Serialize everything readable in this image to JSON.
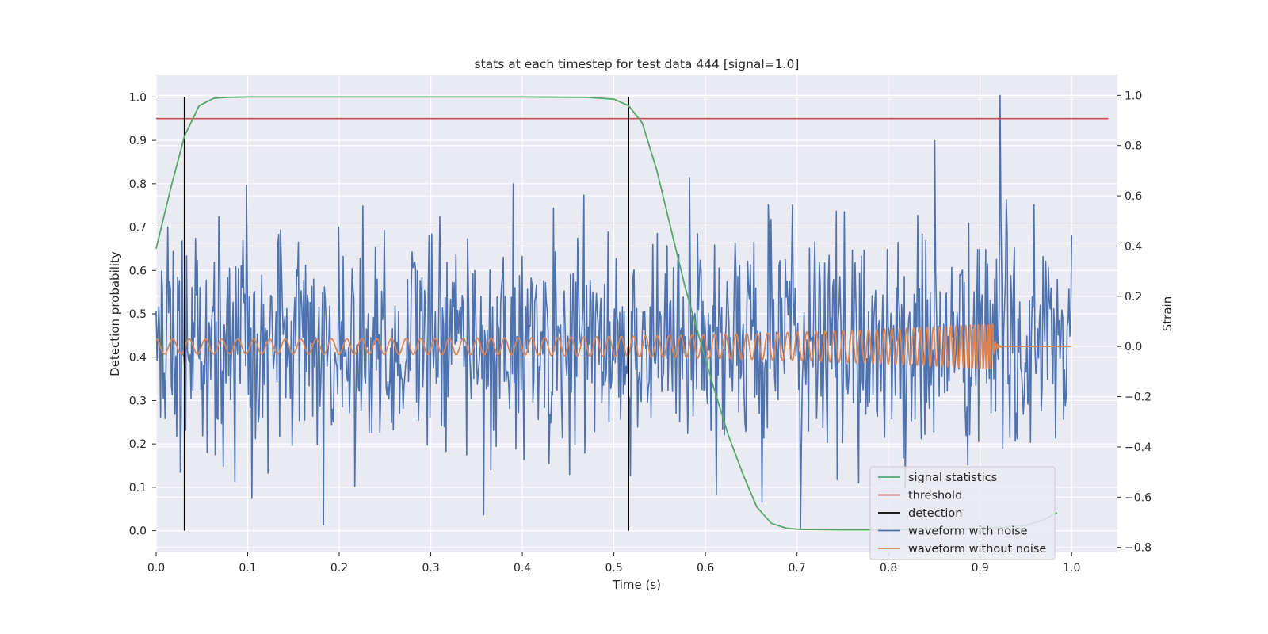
{
  "chart_data": {
    "type": "line",
    "title": "stats at each timestep for test data 444 [signal=1.0]",
    "xlabel": "Time (s)",
    "ylabel_left": "Detection probability",
    "ylabel_right": "Strain",
    "xlim": [
      0.0,
      1.05
    ],
    "ylim_left": [
      -0.05,
      1.05
    ],
    "ylim_right": [
      -0.82,
      1.08
    ],
    "x_ticks": [
      0.0,
      0.1,
      0.2,
      0.3,
      0.4,
      0.5,
      0.6,
      0.7,
      0.8,
      0.9,
      1.0
    ],
    "x_tick_labels": [
      "0.0",
      "0.1",
      "0.2",
      "0.3",
      "0.4",
      "0.5",
      "0.6",
      "0.7",
      "0.8",
      "0.9",
      "1.0"
    ],
    "y_left_ticks": [
      0.0,
      0.1,
      0.2,
      0.3,
      0.4,
      0.5,
      0.6,
      0.7,
      0.8,
      0.9,
      1.0
    ],
    "y_left_tick_labels": [
      "0.0",
      "0.1",
      "0.2",
      "0.3",
      "0.4",
      "0.5",
      "0.6",
      "0.7",
      "0.8",
      "0.9",
      "1.0"
    ],
    "y_right_ticks": [
      -0.8,
      -0.6,
      -0.4,
      -0.2,
      0.0,
      0.2,
      0.4,
      0.6,
      0.8,
      1.0
    ],
    "y_right_tick_labels": [
      "−0.8",
      "−0.6",
      "−0.4",
      "−0.2",
      "0.0",
      "0.2",
      "0.4",
      "0.6",
      "0.8",
      "1.0"
    ],
    "grid": true,
    "legend_position": "lower-right",
    "legend": [
      "signal statistics",
      "threshold",
      "detection",
      "waveform with noise",
      "waveform without noise"
    ],
    "colors": {
      "signal_statistics": "#55a868",
      "threshold": "#c44e52",
      "detection": "#000000",
      "waveform_with_noise": "#4c72b0",
      "waveform_without_noise": "#dd8452",
      "plot_background": "#eaeaf2",
      "grid": "#ffffff"
    },
    "series": [
      {
        "name": "signal statistics",
        "axis": "left",
        "x": [
          0.0,
          0.016,
          0.031,
          0.047,
          0.063,
          0.078,
          0.1,
          0.2,
          0.3,
          0.4,
          0.47,
          0.5,
          0.516,
          0.531,
          0.547,
          0.563,
          0.578,
          0.594,
          0.609,
          0.625,
          0.641,
          0.656,
          0.672,
          0.688,
          0.703,
          0.75,
          0.8,
          0.85,
          0.9,
          0.95,
          0.969,
          0.984
        ],
        "y": [
          0.65,
          0.79,
          0.91,
          0.98,
          0.997,
          0.999,
          1.0,
          1.0,
          1.0,
          1.0,
          0.999,
          0.995,
          0.98,
          0.94,
          0.83,
          0.69,
          0.56,
          0.44,
          0.33,
          0.22,
          0.13,
          0.055,
          0.017,
          0.006,
          0.003,
          0.002,
          0.002,
          0.003,
          0.005,
          0.012,
          0.025,
          0.042
        ]
      },
      {
        "name": "threshold",
        "axis": "left",
        "x": [
          0.0,
          1.04
        ],
        "y": [
          0.95,
          0.95
        ]
      },
      {
        "name": "detection",
        "axis": "left",
        "lines_at_x": [
          0.031,
          0.516
        ],
        "y_range": [
          0.0,
          1.0
        ]
      },
      {
        "name": "waveform with noise",
        "axis": "right",
        "x_range": [
          0.0,
          1.0
        ],
        "n_samples": 1024,
        "approx_amplitude_range": [
          -0.75,
          1.0
        ],
        "notable_points": [
          {
            "x": 0.922,
            "y": 1.0
          },
          {
            "x": 0.183,
            "y": -0.71
          }
        ]
      },
      {
        "name": "waveform without noise",
        "axis": "right",
        "type": "chirp",
        "x_range": [
          0.0,
          1.0
        ],
        "merger_time": 0.914,
        "approx_amplitude_start": 0.03,
        "approx_amplitude_peak": 0.09
      }
    ]
  }
}
